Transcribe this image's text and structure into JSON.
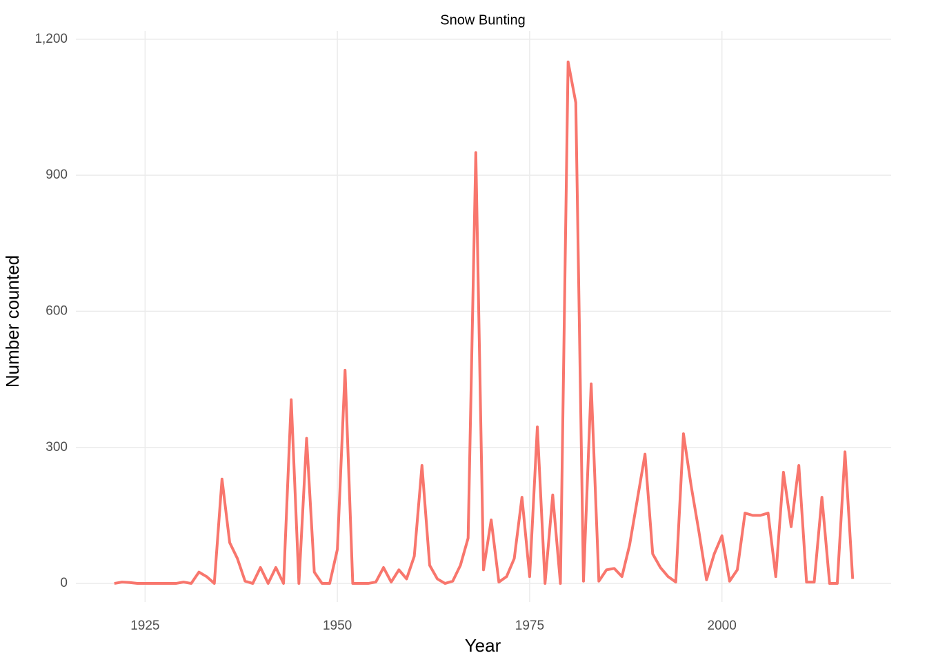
{
  "chart_data": {
    "type": "line",
    "title": "Snow Bunting",
    "x_label": "Year",
    "y_label": "Number counted",
    "x": [
      1921,
      1922,
      1923,
      1924,
      1925,
      1926,
      1927,
      1928,
      1929,
      1930,
      1931,
      1932,
      1933,
      1934,
      1935,
      1936,
      1937,
      1938,
      1939,
      1940,
      1941,
      1942,
      1943,
      1944,
      1945,
      1946,
      1947,
      1948,
      1949,
      1950,
      1951,
      1952,
      1953,
      1954,
      1955,
      1956,
      1957,
      1958,
      1959,
      1960,
      1961,
      1962,
      1963,
      1964,
      1965,
      1966,
      1967,
      1968,
      1969,
      1970,
      1971,
      1972,
      1973,
      1974,
      1975,
      1976,
      1977,
      1978,
      1979,
      1980,
      1981,
      1982,
      1983,
      1984,
      1985,
      1986,
      1987,
      1988,
      1989,
      1990,
      1991,
      1992,
      1993,
      1994,
      1995,
      1996,
      1997,
      1998,
      1999,
      2000,
      2001,
      2002,
      2003,
      2004,
      2005,
      2006,
      2007,
      2008,
      2009,
      2010,
      2011,
      2012,
      2013,
      2014,
      2015,
      2016,
      2017
    ],
    "series": [
      {
        "color": "#f8766d",
        "values": [
          0,
          3,
          2,
          0,
          0,
          0,
          0,
          0,
          0,
          3,
          0,
          25,
          15,
          0,
          230,
          90,
          55,
          5,
          0,
          35,
          0,
          35,
          0,
          405,
          0,
          320,
          25,
          0,
          0,
          75,
          470,
          0,
          0,
          0,
          3,
          35,
          3,
          30,
          10,
          60,
          260,
          40,
          10,
          0,
          5,
          40,
          100,
          950,
          30,
          140,
          3,
          15,
          55,
          190,
          15,
          345,
          0,
          195,
          0,
          1150,
          1060,
          5,
          440,
          5,
          30,
          33,
          15,
          85,
          185,
          285,
          65,
          35,
          15,
          3,
          330,
          215,
          115,
          8,
          65,
          105,
          5,
          30,
          155,
          150,
          150,
          155,
          15,
          245,
          125,
          260,
          3,
          3,
          190,
          0,
          0,
          290,
          10
        ]
      }
    ],
    "xlim": [
      1916,
      2022
    ],
    "xticks": [
      1925,
      1950,
      1975,
      2000
    ],
    "ylim": [
      -41,
      1218
    ],
    "yticks": [
      0,
      300,
      600,
      900,
      {
        "value": 1200,
        "label": "1,200"
      }
    ],
    "grid": true
  }
}
